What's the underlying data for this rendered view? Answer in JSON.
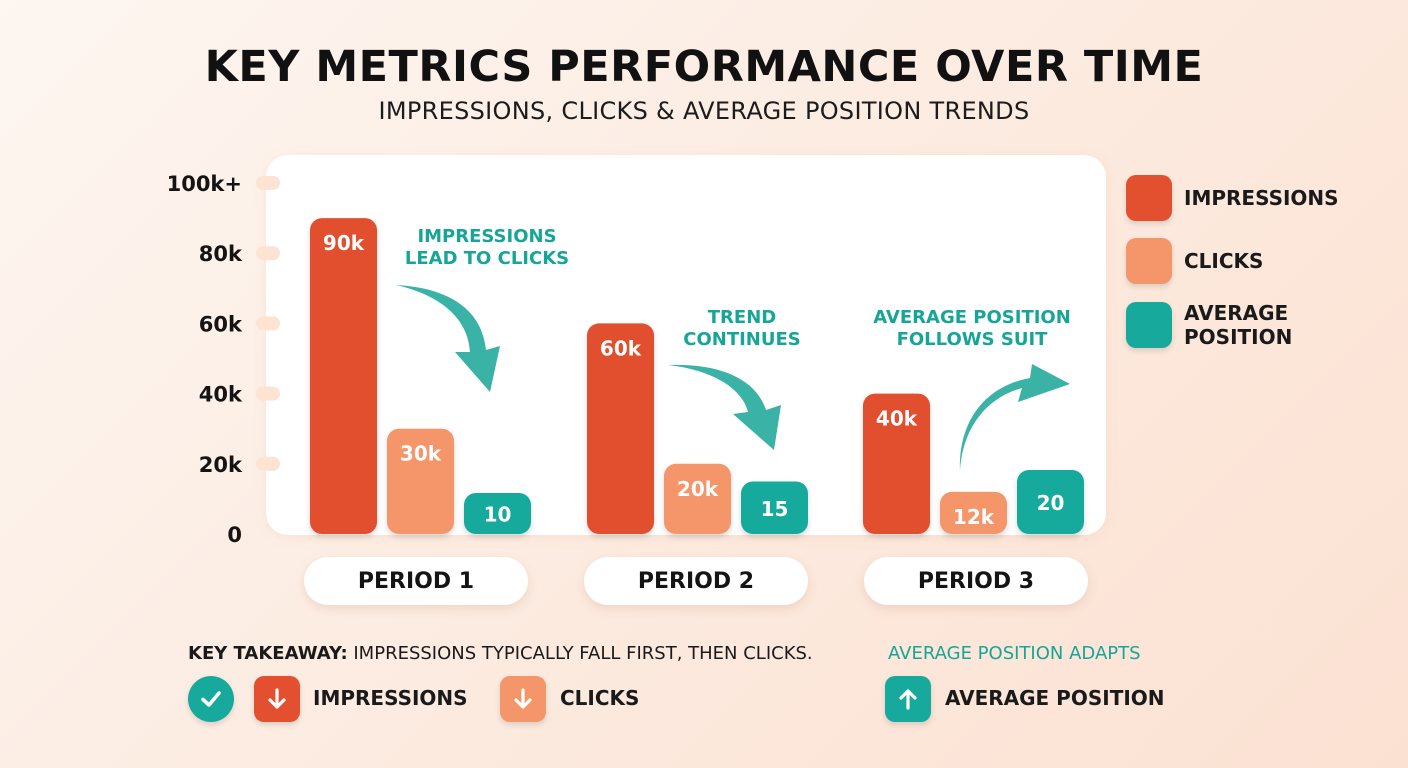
{
  "title": "KEY METRICS PERFORMANCE OVER TIME",
  "subtitle": "IMPRESSIONS, CLICKS & AVERAGE POSITION TRENDS",
  "colors": {
    "impressions": "#e2502f",
    "clicks": "#f5956a",
    "average_position": "#17aa9c",
    "annotation": "#17a597"
  },
  "chart_data": {
    "type": "bar",
    "categories": [
      "PERIOD 1",
      "PERIOD 2",
      "PERIOD 3"
    ],
    "y_ticks": [
      "0",
      "20k",
      "40k",
      "60k",
      "80k",
      "100k+"
    ],
    "ylim": [
      0,
      100000
    ],
    "grid": false,
    "legend_placement": "right",
    "series": [
      {
        "name": "IMPRESSIONS",
        "values": [
          90000,
          60000,
          40000
        ],
        "labels": [
          "90k",
          "60k",
          "40k"
        ],
        "color": "#e2502f"
      },
      {
        "name": "CLICKS",
        "values": [
          30000,
          20000,
          12000
        ],
        "labels": [
          "30k",
          "20k",
          "12k"
        ],
        "color": "#f5956a"
      },
      {
        "name": "AVERAGE POSITION",
        "values": [
          10,
          15,
          20
        ],
        "labels": [
          "10",
          "15",
          "20"
        ],
        "color": "#17aa9c"
      }
    ],
    "annotations": [
      {
        "text": "IMPRESSIONS\nLEAD TO CLICKS",
        "arrow": "down"
      },
      {
        "text": "TREND\nCONTINUES",
        "arrow": "down"
      },
      {
        "text": "AVERAGE POSITION\nFOLLOWS SUIT",
        "arrow": "up"
      }
    ]
  },
  "legend": [
    {
      "label": "IMPRESSIONS",
      "color": "#e2502f"
    },
    {
      "label": "CLICKS",
      "color": "#f5956a"
    },
    {
      "label": "AVERAGE\nPOSITION",
      "color": "#17aa9c"
    }
  ],
  "takeaway": {
    "lead": "KEY TAKEAWAY:",
    "text": " IMPRESSIONS TYPICALLY FALL FIRST, THEN CLICKS.",
    "right_text": "AVERAGE POSITION ADAPTS",
    "items": [
      {
        "icon": "check-icon",
        "color": "#17aa9c"
      },
      {
        "icon": "arrow-down-icon",
        "color": "#e2502f",
        "label": "IMPRESSIONS"
      },
      {
        "icon": "arrow-down-icon",
        "color": "#f5956a",
        "label": "CLICKS"
      },
      {
        "icon": "arrow-up-icon",
        "color": "#17aa9c",
        "label": "AVERAGE POSITION"
      }
    ]
  }
}
